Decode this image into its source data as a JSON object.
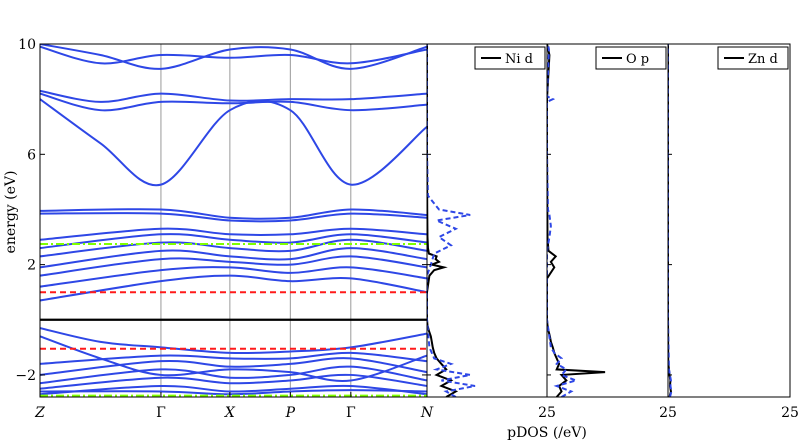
{
  "chart_data": [
    {
      "type": "line",
      "panel": "band-structure",
      "ylabel": "energy (eV)",
      "ylim": [
        -2.8,
        10
      ],
      "yticks": [
        -2,
        2,
        6,
        10
      ],
      "k_labels": [
        "Z",
        "Γ",
        "X",
        "P",
        "Γ",
        "N"
      ],
      "k_positions": [
        0,
        1,
        1.57,
        2.07,
        2.57,
        3.2
      ],
      "grid_vertical_lines": true,
      "band_color": "#2e47e6",
      "reference_lines": [
        {
          "energy": 0,
          "color": "#000000",
          "style": "solid"
        },
        {
          "energy": 1.0,
          "color": "#ff1a1a",
          "style": "dashed"
        },
        {
          "energy": -1.05,
          "color": "#ff1a1a",
          "style": "dashed"
        },
        {
          "energy": 2.75,
          "color": "#7fff00",
          "style": "dash-dot"
        },
        {
          "energy": -2.75,
          "color": "#7fff00",
          "style": "dash-dot"
        }
      ],
      "bands": [
        {
          "k": [
            0,
            1,
            1.57,
            2.07,
            2.57,
            3.2
          ],
          "e": [
            -2.7,
            -2.4,
            -2.6,
            -2.5,
            -2.4,
            -2.7
          ]
        },
        {
          "k": [
            0,
            1,
            1.57,
            2.07,
            2.57,
            3.2
          ],
          "e": [
            -2.5,
            -2.1,
            -2.3,
            -2.2,
            -2.0,
            -2.4
          ]
        },
        {
          "k": [
            0,
            1,
            1.57,
            2.07,
            2.57,
            3.2
          ],
          "e": [
            -2.3,
            -1.8,
            -2.1,
            -2.0,
            -1.7,
            -2.2
          ]
        },
        {
          "k": [
            0,
            1,
            1.57,
            2.07,
            2.57,
            3.2
          ],
          "e": [
            -2.0,
            -1.5,
            -1.7,
            -1.6,
            -1.4,
            -1.9
          ]
        },
        {
          "k": [
            0,
            1,
            1.57,
            2.07,
            2.57,
            3.2
          ],
          "e": [
            -1.6,
            -1.3,
            -1.4,
            -1.4,
            -1.2,
            -1.5
          ]
        },
        {
          "k": [
            0,
            0.5,
            1,
            1.57,
            2.07,
            2.57,
            3.2
          ],
          "e": [
            -0.3,
            -0.8,
            -1.0,
            -1.2,
            -1.15,
            -1.0,
            -0.5
          ]
        },
        {
          "k": [
            0,
            0.5,
            1,
            1.57,
            2.07,
            2.57,
            3.2
          ],
          "e": [
            -0.6,
            -1.4,
            -2.0,
            -1.8,
            -1.9,
            -2.2,
            -1.3
          ]
        },
        {
          "k": [
            0,
            1,
            1.57,
            2.07,
            2.57,
            3.2
          ],
          "e": [
            -2.6,
            -2.6,
            -2.7,
            -2.6,
            -2.55,
            -2.6
          ]
        },
        {
          "k": [
            0,
            1,
            1.57,
            2.07,
            2.57,
            3.2
          ],
          "e": [
            0.7,
            1.4,
            1.6,
            1.4,
            1.5,
            1.0
          ]
        },
        {
          "k": [
            0,
            1,
            1.57,
            2.07,
            2.57,
            3.2
          ],
          "e": [
            1.2,
            1.8,
            1.9,
            1.7,
            1.9,
            1.5
          ]
        },
        {
          "k": [
            0,
            1,
            1.57,
            2.07,
            2.57,
            3.2
          ],
          "e": [
            1.6,
            2.2,
            2.1,
            2.0,
            2.3,
            1.9
          ]
        },
        {
          "k": [
            0,
            1,
            1.57,
            2.07,
            2.57,
            3.2
          ],
          "e": [
            1.9,
            2.5,
            2.3,
            2.2,
            2.6,
            2.2
          ]
        },
        {
          "k": [
            0,
            1,
            1.57,
            2.07,
            2.57,
            3.2
          ],
          "e": [
            2.3,
            2.8,
            2.6,
            2.5,
            2.9,
            2.5
          ]
        },
        {
          "k": [
            0,
            1,
            1.57,
            2.07,
            2.57,
            3.2
          ],
          "e": [
            2.6,
            3.1,
            2.9,
            2.8,
            3.1,
            2.8
          ]
        },
        {
          "k": [
            0,
            1,
            1.57,
            2.07,
            2.57,
            3.2
          ],
          "e": [
            2.9,
            3.3,
            3.1,
            3.1,
            3.3,
            3.1
          ]
        },
        {
          "k": [
            0,
            1,
            1.57,
            2.07,
            2.57,
            3.2
          ],
          "e": [
            3.85,
            3.85,
            3.6,
            3.6,
            3.85,
            3.7
          ]
        },
        {
          "k": [
            0,
            1,
            1.57,
            2.07,
            2.57,
            3.2
          ],
          "e": [
            3.95,
            4.0,
            3.7,
            3.7,
            4.0,
            3.8
          ]
        },
        {
          "k": [
            0,
            0.5,
            1,
            1.57,
            2.07,
            2.57,
            3.2
          ],
          "e": [
            8.0,
            6.4,
            4.9,
            7.6,
            7.6,
            4.9,
            7.0
          ]
        },
        {
          "k": [
            0,
            0.5,
            1,
            1.57,
            2.07,
            2.57,
            3.2
          ],
          "e": [
            8.2,
            7.6,
            7.9,
            7.85,
            7.9,
            7.6,
            7.8
          ]
        },
        {
          "k": [
            0,
            0.5,
            1,
            1.57,
            2.07,
            2.57,
            3.2
          ],
          "e": [
            8.3,
            7.9,
            8.2,
            7.95,
            8.0,
            8.0,
            8.2
          ]
        },
        {
          "k": [
            0,
            0.5,
            1,
            1.57,
            2.07,
            2.57,
            3.2
          ],
          "e": [
            9.9,
            9.3,
            9.6,
            9.5,
            9.6,
            9.3,
            9.8
          ]
        },
        {
          "k": [
            0,
            0.5,
            1,
            1.57,
            2.07,
            2.57,
            3.2
          ],
          "e": [
            10.0,
            9.6,
            9.1,
            9.8,
            9.8,
            9.1,
            9.9
          ]
        }
      ]
    },
    {
      "type": "line",
      "panel": "pdos-ni",
      "legend": "Ni d",
      "legend_position": "top-right",
      "xlim": [
        0,
        25
      ],
      "tick_label": "25",
      "series": [
        {
          "style": "solid",
          "color": "#000000",
          "e": [
            -2.8,
            -2.6,
            -2.4,
            -2.2,
            -2.0,
            -1.8,
            -1.6,
            -1.4,
            -1.2,
            -1.0,
            -0.8,
            -0.6,
            -0.4,
            -0.2,
            0.0,
            1.0,
            1.6,
            1.8,
            1.9,
            2.0,
            2.1,
            2.2,
            2.3,
            2.4,
            2.6,
            3.0,
            4.0,
            6.0,
            8.0,
            10.0
          ],
          "d": [
            4,
            6,
            3,
            5,
            2,
            4,
            3,
            2,
            1.5,
            1.2,
            1,
            0.8,
            0.4,
            0.1,
            0,
            0,
            0.5,
            1.5,
            3.5,
            1,
            2.5,
            1.8,
            2.0,
            0.4,
            0.2,
            0.1,
            0.05,
            0,
            0,
            0
          ]
        },
        {
          "style": "dashed",
          "color": "#2e47e6",
          "e": [
            -2.8,
            -2.6,
            -2.4,
            -2.2,
            -2.0,
            -1.8,
            -1.6,
            -1.4,
            -1.2,
            -1.0,
            0.0,
            1.6,
            2.0,
            2.4,
            2.7,
            3.0,
            3.3,
            3.6,
            3.8,
            4.0,
            4.5,
            6.0,
            8.0,
            10.0
          ],
          "d": [
            6,
            4,
            10,
            3,
            9,
            2,
            5,
            1.5,
            1,
            0.5,
            0,
            0,
            0.8,
            1.5,
            5,
            2.5,
            6,
            2.0,
            9,
            2.5,
            0.2,
            0,
            0,
            0
          ]
        }
      ]
    },
    {
      "type": "line",
      "panel": "pdos-o",
      "legend": "O p",
      "legend_position": "top-right",
      "xlim": [
        0,
        25
      ],
      "tick_label": "25",
      "series": [
        {
          "style": "solid",
          "color": "#000000",
          "e": [
            -2.8,
            -2.6,
            -2.4,
            -2.2,
            -2.0,
            -1.9,
            -1.8,
            -1.6,
            -1.4,
            -1.2,
            -1.0,
            -0.8,
            -0.6,
            -0.4,
            -0.2,
            0.0,
            1.5,
            1.9,
            2.1,
            2.3,
            2.5,
            3.0,
            6.0,
            8.0,
            9.6,
            10.0
          ],
          "d": [
            2,
            3,
            2.5,
            4,
            3,
            12,
            2,
            2.5,
            2,
            1.5,
            1.2,
            0.8,
            0.6,
            0.3,
            0.1,
            0,
            0,
            1.5,
            0.8,
            1.8,
            0.3,
            0.1,
            0,
            0,
            0.5,
            0
          ]
        },
        {
          "style": "dashed",
          "color": "#2e47e6",
          "e": [
            -2.8,
            -2.6,
            -2.4,
            -2.2,
            -2.0,
            -1.8,
            -1.6,
            -1.4,
            -1.2,
            -1.0,
            0.0,
            2.5,
            3.0,
            3.4,
            3.8,
            4.0,
            6.0,
            7.9,
            8.0,
            8.1,
            9.8,
            10.0
          ],
          "d": [
            3,
            5,
            2,
            6,
            3,
            4,
            2,
            3,
            1.5,
            0.8,
            0,
            0,
            0.5,
            0.8,
            0.5,
            0.2,
            0,
            0,
            1.2,
            0,
            0.4,
            0.2
          ]
        }
      ]
    },
    {
      "type": "line",
      "panel": "pdos-zn",
      "legend": "Zn d",
      "legend_position": "top-right",
      "xlim": [
        0,
        25
      ],
      "tick_labels": [
        "25",
        "25"
      ],
      "series": [
        {
          "style": "solid",
          "color": "#000000",
          "e": [
            -2.8,
            -2.6,
            -2.4,
            -2.2,
            -2.0,
            -1.8,
            -1.6,
            0.0,
            10.0
          ],
          "d": [
            0.3,
            0.6,
            0.4,
            0.5,
            0.3,
            0.2,
            0.05,
            0,
            0
          ]
        },
        {
          "style": "dashed",
          "color": "#2e47e6",
          "e": [
            -2.8,
            -2.6,
            -2.4,
            -2.2,
            -2.0,
            -1.8,
            0.0,
            10.0
          ],
          "d": [
            0.4,
            0.7,
            0.5,
            0.6,
            0.4,
            0.2,
            0,
            0
          ]
        }
      ]
    }
  ],
  "pdos_xlabel": "pDOS (/eV)"
}
